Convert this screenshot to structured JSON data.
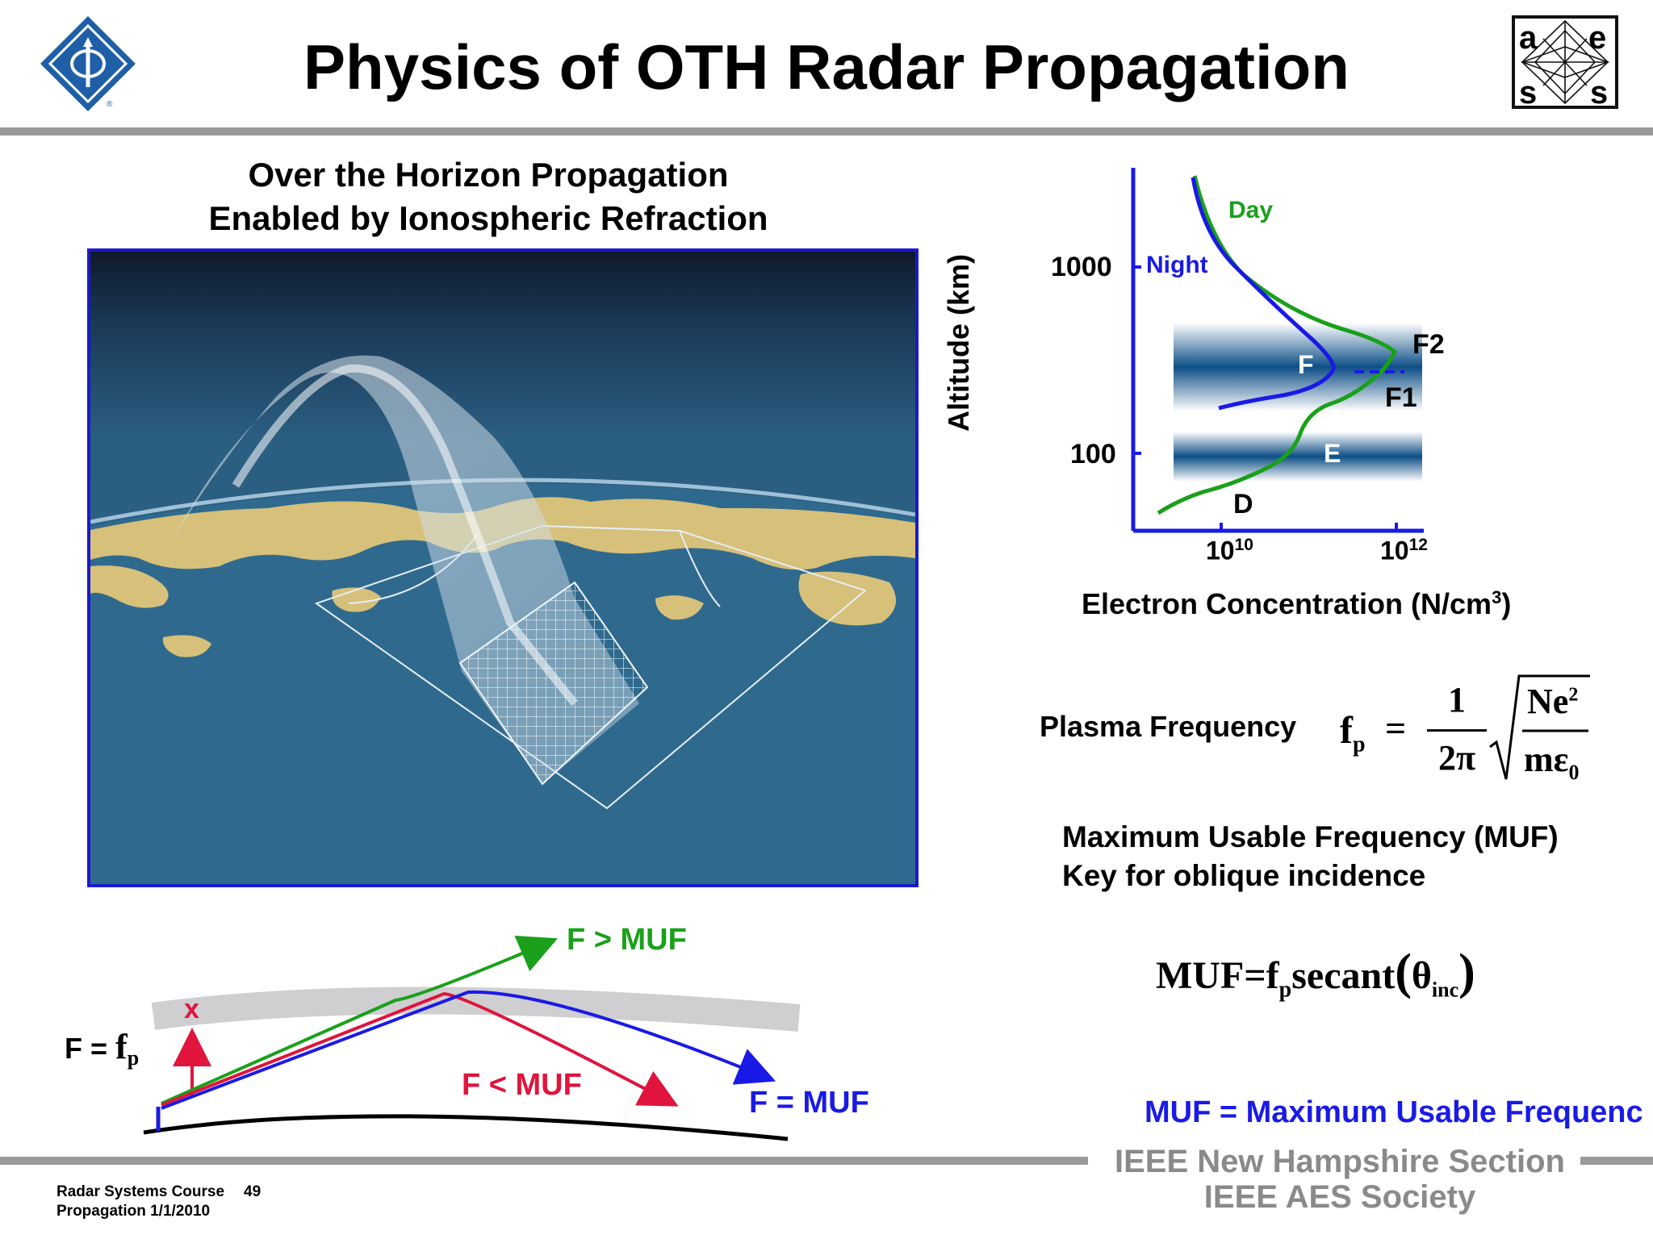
{
  "title": "Physics of OTH Radar Propagation",
  "logos": {
    "left": "ieee-diamond-logo",
    "right": "aes-logo",
    "right_letters": [
      "a",
      "e",
      "s",
      "s"
    ]
  },
  "left_panel": {
    "subtitle_line1": "Over the Horizon Propagation",
    "subtitle_line2": "Enabled by Ionospheric Refraction"
  },
  "profile_plot": {
    "ylabel": "Altitude (km)",
    "xlabel": "Electron Concentration (N/cm",
    "xlabel_sup": "3",
    "xlabel_close": ")",
    "yticks": [
      "1000",
      "100"
    ],
    "xticks": [
      {
        "base": "10",
        "exp": "10"
      },
      {
        "base": "10",
        "exp": "12"
      }
    ],
    "curves": [
      {
        "name": "Day",
        "color": "#1aa01a"
      },
      {
        "name": "Night",
        "color": "#1a1ae6"
      }
    ],
    "layers": [
      "F2",
      "F",
      "F1",
      "E",
      "D"
    ]
  },
  "plasma": {
    "label": "Plasma Frequency",
    "lhs": "f",
    "lhs_sub": "p",
    "num": "1",
    "den": "2π",
    "rad_num": "Ne",
    "rad_num_sup": "2",
    "rad_den": "mε",
    "rad_den_sub": "0"
  },
  "muf_text": {
    "line1": "Maximum Usable Frequency (MUF)",
    "line2": "Key for oblique incidence"
  },
  "muf_formula": {
    "lhs": "MUF",
    "eq": "=",
    "f": "f",
    "f_sub": "p",
    "fn": "secant",
    "theta": "θ",
    "theta_sub": "inc"
  },
  "ray_diagram": {
    "f_eq_label": "F =",
    "f_eq_var": "f",
    "f_eq_sub": "p",
    "x_mark": "x",
    "green_label": "F > MUF",
    "red_label": "F < MUF",
    "blue_label": "F = MUF",
    "colors": {
      "green": "#1aa01a",
      "red": "#e0143c",
      "blue": "#1a1ae6"
    }
  },
  "muf_definition": "MUF = Maximum Usable Frequenc",
  "footer": {
    "course_line1": "Radar Systems Course",
    "page_number": "49",
    "course_line2": "Propagation  1/1/2010",
    "society_line1": "IEEE New Hampshire Section",
    "society_line2": "IEEE AES Society"
  }
}
